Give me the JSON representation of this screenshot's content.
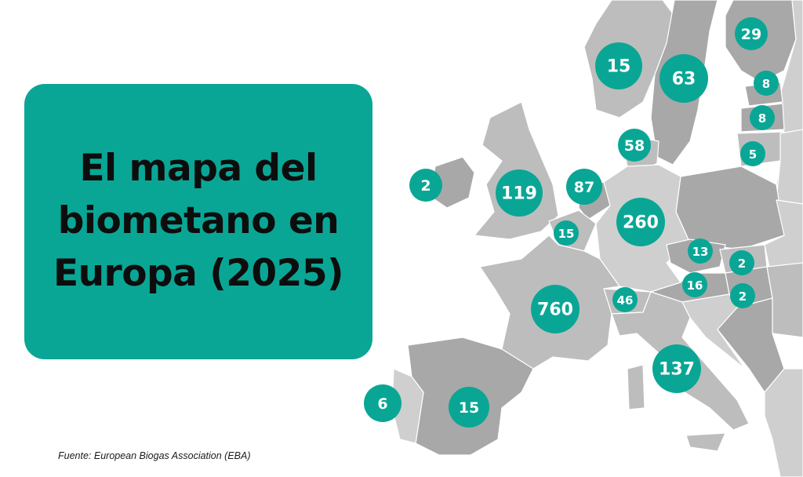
{
  "title": {
    "lines": [
      "El mapa del",
      "biometano en",
      "Europa (2025)"
    ]
  },
  "source": "Fuente: European Biogas Association (EBA)",
  "colors": {
    "accent": "#0aa695",
    "land_dark": "#a8a8a8",
    "land_mid": "#bdbdbd",
    "land_light": "#cfcfcf",
    "background": "#ffffff"
  },
  "map_values": [
    {
      "id": "norway",
      "value": "15"
    },
    {
      "id": "sweden",
      "value": "63"
    },
    {
      "id": "finland",
      "value": "29"
    },
    {
      "id": "estonia",
      "value": "8"
    },
    {
      "id": "latvia",
      "value": "8"
    },
    {
      "id": "lithuania",
      "value": "5"
    },
    {
      "id": "denmark",
      "value": "58"
    },
    {
      "id": "ireland",
      "value": "2"
    },
    {
      "id": "united-kingdom",
      "value": "119"
    },
    {
      "id": "netherlands",
      "value": "87"
    },
    {
      "id": "belgium",
      "value": "15"
    },
    {
      "id": "germany",
      "value": "260"
    },
    {
      "id": "czechia",
      "value": "13"
    },
    {
      "id": "slovakia",
      "value": "2"
    },
    {
      "id": "austria",
      "value": "16"
    },
    {
      "id": "hungary",
      "value": "2"
    },
    {
      "id": "switzerland",
      "value": "46"
    },
    {
      "id": "france",
      "value": "760"
    },
    {
      "id": "italy",
      "value": "137"
    },
    {
      "id": "portugal",
      "value": "6"
    },
    {
      "id": "spain",
      "value": "15"
    }
  ]
}
